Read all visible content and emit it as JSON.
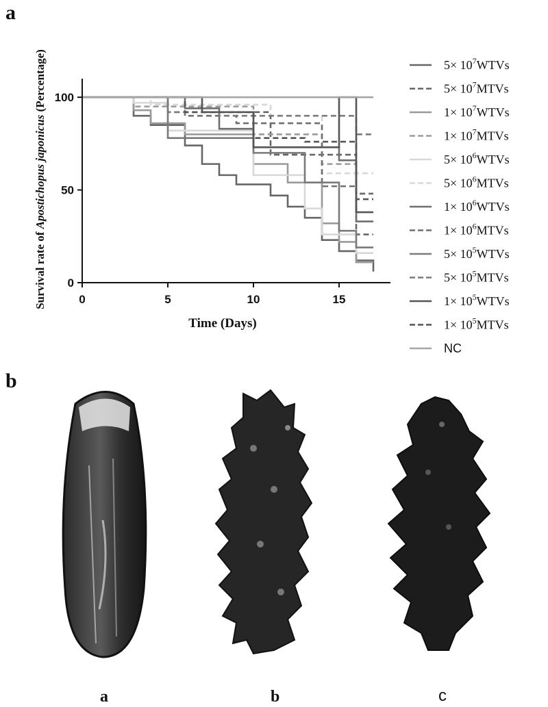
{
  "panel_a_label": "a",
  "panel_b_label": "b",
  "chart_data": {
    "type": "line",
    "step": true,
    "title": "",
    "xlabel": "Time (Days)",
    "ylabel_prefix": "Survival rate of ",
    "ylabel_italic": "Apostichopus japonicus",
    "ylabel_suffix": " (Percentage)",
    "xlim": [
      0,
      18
    ],
    "ylim": [
      0,
      110
    ],
    "xticks": [
      0,
      5,
      10,
      15
    ],
    "yticks": [
      0,
      50,
      100
    ],
    "legend_position": "right",
    "series": [
      {
        "name": "5× 10^7WTVs",
        "base": "5× 10",
        "exp": "7",
        "suffix": "WTVs",
        "color": "#666666",
        "dash": false,
        "x": [
          0,
          3,
          4,
          6,
          7,
          8,
          9,
          10,
          11,
          12,
          13,
          14,
          15,
          16,
          17
        ],
        "y": [
          100,
          90,
          85,
          74,
          64,
          58,
          53,
          53,
          47,
          41,
          35,
          23,
          17,
          12,
          6
        ]
      },
      {
        "name": "5× 10^7MTVs",
        "base": "5× 10",
        "exp": "7",
        "suffix": "MTVs",
        "color": "#666666",
        "dash": true,
        "x": [
          0,
          5,
          7,
          11,
          13,
          16,
          17
        ],
        "y": [
          100,
          92,
          92,
          69,
          69,
          26,
          26
        ]
      },
      {
        "name": "1× 10^7WTVs",
        "base": "1× 10",
        "exp": "7",
        "suffix": "WTVs",
        "color": "#9a9a9a",
        "dash": false,
        "x": [
          0,
          3,
          4,
          6,
          10,
          12,
          14,
          15,
          16,
          17
        ],
        "y": [
          100,
          93,
          86,
          80,
          64,
          54,
          32,
          22,
          11,
          11
        ]
      },
      {
        "name": "1× 10^7MTVs",
        "base": "1× 10",
        "exp": "7",
        "suffix": "MTVs",
        "color": "#9a9a9a",
        "dash": true,
        "x": [
          0,
          3,
          10,
          14,
          16,
          17
        ],
        "y": [
          100,
          95,
          80,
          64,
          48,
          48
        ]
      },
      {
        "name": "5× 10^6WTVs",
        "base": "5× 10",
        "exp": "6",
        "suffix": "WTVs",
        "color": "#d8d8d8",
        "dash": false,
        "x": [
          0,
          3,
          5,
          10,
          11,
          13,
          14,
          15,
          16,
          17
        ],
        "y": [
          100,
          97,
          82,
          58,
          58,
          40,
          26,
          26,
          16,
          16
        ]
      },
      {
        "name": "5× 10^6MTVs",
        "base": "5× 10",
        "exp": "6",
        "suffix": "MTVs",
        "color": "#d8d8d8",
        "dash": true,
        "x": [
          0,
          4,
          11,
          14,
          17
        ],
        "y": [
          100,
          96,
          90,
          59,
          59
        ]
      },
      {
        "name": "1× 10^6WTVs",
        "base": "1× 10",
        "exp": "6",
        "suffix": "WTVs",
        "color": "#6f6f6f",
        "dash": false,
        "x": [
          0,
          6,
          8,
          10,
          12,
          15,
          16,
          17
        ],
        "y": [
          100,
          94,
          83,
          73,
          73,
          66,
          33,
          33
        ]
      },
      {
        "name": "1× 10^6MTVs",
        "base": "1× 10",
        "exp": "6",
        "suffix": "MTVs",
        "color": "#6f6f6f",
        "dash": true,
        "x": [
          0,
          6,
          9,
          14,
          16,
          17
        ],
        "y": [
          100,
          90,
          86,
          52,
          48,
          48
        ]
      },
      {
        "name": "5× 10^5WTVs",
        "base": "5× 10",
        "exp": "5",
        "suffix": "WTVs",
        "color": "#7a7a7a",
        "dash": false,
        "x": [
          0,
          5,
          9,
          10,
          13,
          15,
          16,
          17
        ],
        "y": [
          100,
          78,
          78,
          70,
          54,
          28,
          19,
          19
        ]
      },
      {
        "name": "5× 10^5MTVs",
        "base": "5× 10",
        "exp": "5",
        "suffix": "MTVs",
        "color": "#7a7a7a",
        "dash": true,
        "x": [
          0,
          5,
          8,
          16,
          17
        ],
        "y": [
          100,
          92,
          90,
          80,
          80
        ]
      },
      {
        "name": "1× 10^5WTVs",
        "base": "1× 10",
        "exp": "5",
        "suffix": "WTVs",
        "color": "#555555",
        "dash": false,
        "x": [
          0,
          7,
          10,
          15,
          16,
          17
        ],
        "y": [
          100,
          92,
          73,
          100,
          38,
          38
        ]
      },
      {
        "name": "1× 10^5MTVs",
        "base": "1× 10",
        "exp": "5",
        "suffix": "MTVs",
        "color": "#555555",
        "dash": true,
        "x": [
          0,
          6,
          10,
          13,
          16,
          17
        ],
        "y": [
          100,
          92,
          78,
          76,
          45,
          45
        ]
      },
      {
        "name": "NC",
        "base": "NC",
        "exp": "",
        "suffix": "",
        "color": "#a6a6a6",
        "dash": false,
        "x": [
          0,
          17
        ],
        "y": [
          100,
          100
        ]
      }
    ]
  },
  "specimen_captions": [
    "a",
    "b",
    "c"
  ]
}
